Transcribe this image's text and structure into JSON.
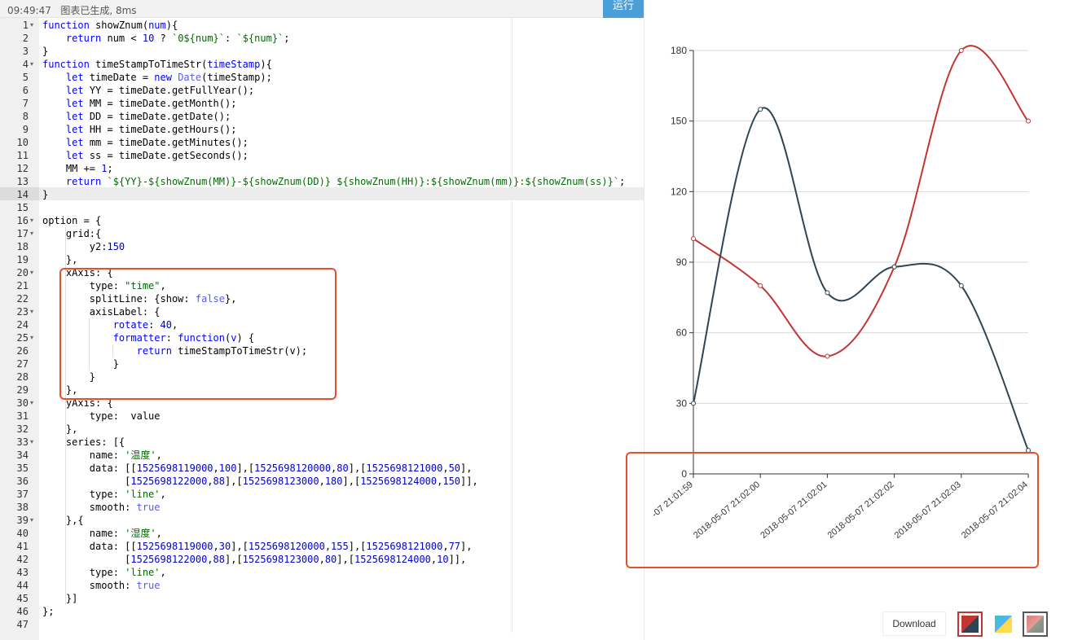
{
  "status_bar": {
    "text": "09:49:47   图表已生成, 8ms",
    "run_label": "运行"
  },
  "code_lines": [
    {
      "n": "1",
      "fold": true,
      "segs": [
        [
          "kw",
          "function "
        ],
        [
          "fn",
          "showZnum("
        ],
        [
          "kw",
          "num"
        ],
        [
          "fn",
          "){"
        ]
      ]
    },
    {
      "n": "2",
      "fold": false,
      "segs": [
        [
          "plain",
          "    "
        ],
        [
          "kw",
          "return "
        ],
        [
          "plain",
          "num < "
        ],
        [
          "num",
          "10"
        ],
        [
          "plain",
          " ? "
        ],
        [
          "str",
          "`0${num}`"
        ],
        [
          "plain",
          ": "
        ],
        [
          "str",
          "`${num}`"
        ],
        [
          "plain",
          ";"
        ]
      ]
    },
    {
      "n": "3",
      "fold": false,
      "segs": [
        [
          "plain",
          "}"
        ]
      ]
    },
    {
      "n": "4",
      "fold": true,
      "segs": [
        [
          "kw",
          "function "
        ],
        [
          "fn",
          "timeStampToTimeStr("
        ],
        [
          "kw",
          "timeStamp"
        ],
        [
          "fn",
          "){"
        ]
      ]
    },
    {
      "n": "5",
      "fold": false,
      "segs": [
        [
          "plain",
          "    "
        ],
        [
          "kw",
          "let "
        ],
        [
          "plain",
          "timeDate = "
        ],
        [
          "kw",
          "new "
        ],
        [
          "bool",
          "Date"
        ],
        [
          "plain",
          "(timeStamp);"
        ]
      ]
    },
    {
      "n": "6",
      "fold": false,
      "segs": [
        [
          "plain",
          "    "
        ],
        [
          "kw",
          "let "
        ],
        [
          "plain",
          "YY = timeDate.getFullYear();"
        ]
      ]
    },
    {
      "n": "7",
      "fold": false,
      "segs": [
        [
          "plain",
          "    "
        ],
        [
          "kw",
          "let "
        ],
        [
          "plain",
          "MM = timeDate.getMonth();"
        ]
      ]
    },
    {
      "n": "8",
      "fold": false,
      "segs": [
        [
          "plain",
          "    "
        ],
        [
          "kw",
          "let "
        ],
        [
          "plain",
          "DD = timeDate.getDate();"
        ]
      ]
    },
    {
      "n": "9",
      "fold": false,
      "segs": [
        [
          "plain",
          "    "
        ],
        [
          "kw",
          "let "
        ],
        [
          "plain",
          "HH = timeDate.getHours();"
        ]
      ]
    },
    {
      "n": "10",
      "fold": false,
      "segs": [
        [
          "plain",
          "    "
        ],
        [
          "kw",
          "let "
        ],
        [
          "plain",
          "mm = timeDate.getMinutes();"
        ]
      ]
    },
    {
      "n": "11",
      "fold": false,
      "segs": [
        [
          "plain",
          "    "
        ],
        [
          "kw",
          "let "
        ],
        [
          "plain",
          "ss = timeDate.getSeconds();"
        ]
      ]
    },
    {
      "n": "12",
      "fold": false,
      "segs": [
        [
          "plain",
          "    MM += "
        ],
        [
          "num",
          "1"
        ],
        [
          "plain",
          ";"
        ]
      ]
    },
    {
      "n": "13",
      "fold": false,
      "segs": [
        [
          "plain",
          "    "
        ],
        [
          "kw",
          "return "
        ],
        [
          "str",
          "`${YY}-${showZnum(MM)}-${showZnum(DD)} ${showZnum(HH)}:${showZnum(mm)}:${showZnum(ss)}`"
        ],
        [
          "plain",
          ";"
        ]
      ]
    },
    {
      "n": "14",
      "fold": false,
      "segs": [
        [
          "plain",
          "}"
        ]
      ]
    },
    {
      "n": "15",
      "fold": false,
      "segs": []
    },
    {
      "n": "16",
      "fold": true,
      "segs": [
        [
          "plain",
          "option = {"
        ]
      ]
    },
    {
      "n": "17",
      "fold": true,
      "segs": [
        [
          "plain",
          "    grid:{"
        ]
      ]
    },
    {
      "n": "18",
      "fold": false,
      "segs": [
        [
          "plain",
          "        y2:"
        ],
        [
          "num",
          "150"
        ]
      ]
    },
    {
      "n": "19",
      "fold": false,
      "segs": [
        [
          "plain",
          "    },"
        ]
      ]
    },
    {
      "n": "20",
      "fold": true,
      "segs": [
        [
          "plain",
          "    xAxis: {"
        ]
      ]
    },
    {
      "n": "21",
      "fold": false,
      "segs": [
        [
          "plain",
          "        type: "
        ],
        [
          "str",
          "\"time\""
        ],
        [
          "plain",
          ","
        ]
      ]
    },
    {
      "n": "22",
      "fold": false,
      "segs": [
        [
          "plain",
          "        splitLine: {show: "
        ],
        [
          "bool",
          "false"
        ],
        [
          "plain",
          "},"
        ]
      ]
    },
    {
      "n": "23",
      "fold": true,
      "segs": [
        [
          "plain",
          "        axisLabel: {"
        ]
      ]
    },
    {
      "n": "24",
      "fold": false,
      "segs": [
        [
          "plain",
          "            "
        ],
        [
          "kw",
          "rotate"
        ],
        [
          "plain",
          ": "
        ],
        [
          "num",
          "40"
        ],
        [
          "plain",
          ","
        ]
      ]
    },
    {
      "n": "25",
      "fold": true,
      "segs": [
        [
          "plain",
          "            "
        ],
        [
          "kw",
          "formatter"
        ],
        [
          "plain",
          ": "
        ],
        [
          "kw",
          "function"
        ],
        [
          "plain",
          "("
        ],
        [
          "kw",
          "v"
        ],
        [
          "plain",
          ") {"
        ]
      ]
    },
    {
      "n": "26",
      "fold": false,
      "segs": [
        [
          "plain",
          "                "
        ],
        [
          "kw",
          "return "
        ],
        [
          "plain",
          "timeStampToTimeStr(v);"
        ]
      ]
    },
    {
      "n": "27",
      "fold": false,
      "segs": [
        [
          "plain",
          "            }"
        ]
      ]
    },
    {
      "n": "28",
      "fold": false,
      "segs": [
        [
          "plain",
          "        }"
        ]
      ]
    },
    {
      "n": "29",
      "fold": false,
      "segs": [
        [
          "plain",
          "    },"
        ]
      ]
    },
    {
      "n": "30",
      "fold": true,
      "segs": [
        [
          "plain",
          "    yAxis: {"
        ]
      ]
    },
    {
      "n": "31",
      "fold": false,
      "segs": [
        [
          "plain",
          "        type:  value"
        ]
      ]
    },
    {
      "n": "32",
      "fold": false,
      "segs": [
        [
          "plain",
          "    },"
        ]
      ]
    },
    {
      "n": "33",
      "fold": true,
      "segs": [
        [
          "plain",
          "    series: [{"
        ]
      ]
    },
    {
      "n": "34",
      "fold": false,
      "segs": [
        [
          "plain",
          "        name: "
        ],
        [
          "str",
          "'温度'"
        ],
        [
          "plain",
          ","
        ]
      ]
    },
    {
      "n": "35",
      "fold": false,
      "segs": [
        [
          "plain",
          "        data: [["
        ],
        [
          "num",
          "1525698119000"
        ],
        [
          "plain",
          ","
        ],
        [
          "num",
          "100"
        ],
        [
          "plain",
          "],["
        ],
        [
          "num",
          "1525698120000"
        ],
        [
          "plain",
          ","
        ],
        [
          "num",
          "80"
        ],
        [
          "plain",
          "],["
        ],
        [
          "num",
          "1525698121000"
        ],
        [
          "plain",
          ","
        ],
        [
          "num",
          "50"
        ],
        [
          "plain",
          "],"
        ]
      ]
    },
    {
      "n": "36",
      "fold": false,
      "segs": [
        [
          "plain",
          "              ["
        ],
        [
          "num",
          "1525698122000"
        ],
        [
          "plain",
          ","
        ],
        [
          "num",
          "88"
        ],
        [
          "plain",
          "],["
        ],
        [
          "num",
          "1525698123000"
        ],
        [
          "plain",
          ","
        ],
        [
          "num",
          "180"
        ],
        [
          "plain",
          "],["
        ],
        [
          "num",
          "1525698124000"
        ],
        [
          "plain",
          ","
        ],
        [
          "num",
          "150"
        ],
        [
          "plain",
          "]],"
        ]
      ]
    },
    {
      "n": "37",
      "fold": false,
      "segs": [
        [
          "plain",
          "        type: "
        ],
        [
          "str",
          "'line'"
        ],
        [
          "plain",
          ","
        ]
      ]
    },
    {
      "n": "38",
      "fold": false,
      "segs": [
        [
          "plain",
          "        smooth: "
        ],
        [
          "bool",
          "true"
        ]
      ]
    },
    {
      "n": "39",
      "fold": true,
      "segs": [
        [
          "plain",
          "    },{"
        ]
      ]
    },
    {
      "n": "40",
      "fold": false,
      "segs": [
        [
          "plain",
          "        name: "
        ],
        [
          "str",
          "'湿度'"
        ],
        [
          "plain",
          ","
        ]
      ]
    },
    {
      "n": "41",
      "fold": false,
      "segs": [
        [
          "plain",
          "        data: [["
        ],
        [
          "num",
          "1525698119000"
        ],
        [
          "plain",
          ","
        ],
        [
          "num",
          "30"
        ],
        [
          "plain",
          "],["
        ],
        [
          "num",
          "1525698120000"
        ],
        [
          "plain",
          ","
        ],
        [
          "num",
          "155"
        ],
        [
          "plain",
          "],["
        ],
        [
          "num",
          "1525698121000"
        ],
        [
          "plain",
          ","
        ],
        [
          "num",
          "77"
        ],
        [
          "plain",
          "],"
        ]
      ]
    },
    {
      "n": "42",
      "fold": false,
      "segs": [
        [
          "plain",
          "              ["
        ],
        [
          "num",
          "1525698122000"
        ],
        [
          "plain",
          ","
        ],
        [
          "num",
          "88"
        ],
        [
          "plain",
          "],["
        ],
        [
          "num",
          "1525698123000"
        ],
        [
          "plain",
          ","
        ],
        [
          "num",
          "80"
        ],
        [
          "plain",
          "],["
        ],
        [
          "num",
          "1525698124000"
        ],
        [
          "plain",
          ","
        ],
        [
          "num",
          "10"
        ],
        [
          "plain",
          "]],"
        ]
      ]
    },
    {
      "n": "43",
      "fold": false,
      "segs": [
        [
          "plain",
          "        type: "
        ],
        [
          "str",
          "'line'"
        ],
        [
          "plain",
          ","
        ]
      ]
    },
    {
      "n": "44",
      "fold": false,
      "segs": [
        [
          "plain",
          "        smooth: "
        ],
        [
          "bool",
          "true"
        ]
      ]
    },
    {
      "n": "45",
      "fold": false,
      "segs": [
        [
          "plain",
          "    }]"
        ]
      ]
    },
    {
      "n": "46",
      "fold": false,
      "segs": [
        [
          "plain",
          "};"
        ]
      ]
    },
    {
      "n": "47",
      "fold": false,
      "segs": []
    }
  ],
  "chart_data": {
    "type": "line",
    "smooth": true,
    "x_labels": [
      "-07 21:01:59",
      "2018-05-07 21:02:00",
      "2018-05-07 21:02:01",
      "2018-05-07 21:02:02",
      "2018-05-07 21:02:03",
      "2018-05-07 21:02:04"
    ],
    "y_ticks": [
      0,
      30,
      60,
      90,
      120,
      150,
      180
    ],
    "ylim": [
      0,
      180
    ],
    "series": [
      {
        "name": "温度",
        "color": "#c23531",
        "values": [
          100,
          80,
          50,
          88,
          180,
          150
        ]
      },
      {
        "name": "湿度",
        "color": "#2f4554",
        "values": [
          30,
          155,
          77,
          88,
          80,
          10
        ]
      }
    ],
    "grid": true
  },
  "toolbar": {
    "download_label": "Download",
    "themes": [
      "theme-red-dark",
      "theme-blue-yellow",
      "theme-grey-pink"
    ]
  }
}
